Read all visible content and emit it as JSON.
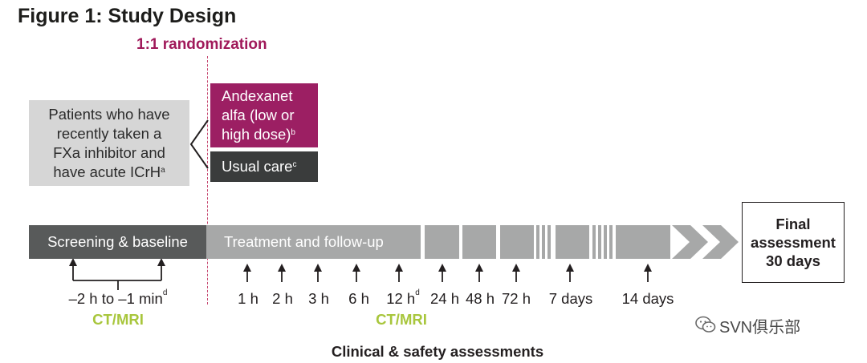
{
  "title": "Figure 1: Study Design",
  "randomization_label": "1:1 randomization",
  "population": {
    "lines": [
      "Patients who have",
      "recently taken a",
      "FXa inhibitor and",
      "have acute ICrH"
    ],
    "footnote": "a"
  },
  "arms": [
    {
      "lines": [
        "Andexanet",
        "alfa (low or",
        "high dose)"
      ],
      "footnote": "b",
      "color": "#9c1f63"
    },
    {
      "lines": [
        "Usual care"
      ],
      "footnote": "c",
      "color": "#3a3c3c"
    }
  ],
  "phases": {
    "screening": "Screening & baseline",
    "treatment": "Treatment and follow-up"
  },
  "final": {
    "lines": [
      "Final",
      "assessment",
      "30 days"
    ]
  },
  "baseline_timepoint": {
    "label": "–2 h to –1 min",
    "footnote": "d"
  },
  "timepoints": [
    {
      "label": "1 h"
    },
    {
      "label": "2 h"
    },
    {
      "label": "3 h"
    },
    {
      "label": "6 h"
    },
    {
      "label": "12 h",
      "footnote": "d"
    },
    {
      "label": "24 h"
    },
    {
      "label": "48 h"
    },
    {
      "label": "72 h"
    },
    {
      "label": "7 days"
    },
    {
      "label": "14 days"
    }
  ],
  "imaging_label": "CT/MRI",
  "assessments_label": "Clinical & safety assessments",
  "watermark": "SVN俱乐部",
  "colors": {
    "accent": "#a0195a",
    "imaging": "#a8c63c",
    "dark": "#585a5a",
    "light": "#a7a8a8"
  }
}
